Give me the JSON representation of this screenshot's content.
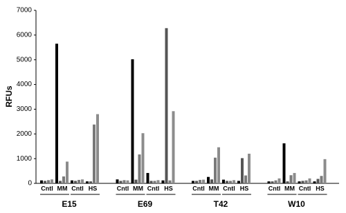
{
  "chart_data": {
    "type": "grouped-bar",
    "y_label": "RFUs",
    "groups": [
      "E15",
      "E69",
      "T42",
      "W10"
    ],
    "categories": [
      "Cntl",
      "MM",
      "Cntl",
      "HS",
      "Cntl",
      "MM",
      "Cntl",
      "HS",
      "Cntl",
      "MM",
      "Cntl",
      "HS",
      "Cntl",
      "MM",
      "Cntl",
      "HS"
    ],
    "series": [
      {
        "color": "#000000",
        "values": [
          120,
          5650,
          120,
          80,
          160,
          5020,
          420,
          120,
          100,
          260,
          150,
          100,
          80,
          1620,
          80,
          80
        ]
      },
      {
        "color": "#555555",
        "values": [
          100,
          100,
          100,
          80,
          100,
          150,
          100,
          6280,
          100,
          160,
          100,
          1020,
          80,
          80,
          100,
          180
        ]
      },
      {
        "color": "#7a7a7a",
        "values": [
          130,
          280,
          140,
          2380,
          130,
          1170,
          100,
          120,
          140,
          1040,
          100,
          320,
          120,
          330,
          120,
          300
        ]
      },
      {
        "color": "#8c8c8c",
        "values": [
          160,
          880,
          160,
          2800,
          120,
          2030,
          130,
          2920,
          150,
          1460,
          130,
          1200,
          200,
          420,
          200,
          980
        ]
      }
    ],
    "ylim": [
      0,
      7000
    ],
    "yticks": [
      0,
      1000,
      2000,
      3000,
      4000,
      5000,
      6000,
      7000
    ]
  }
}
